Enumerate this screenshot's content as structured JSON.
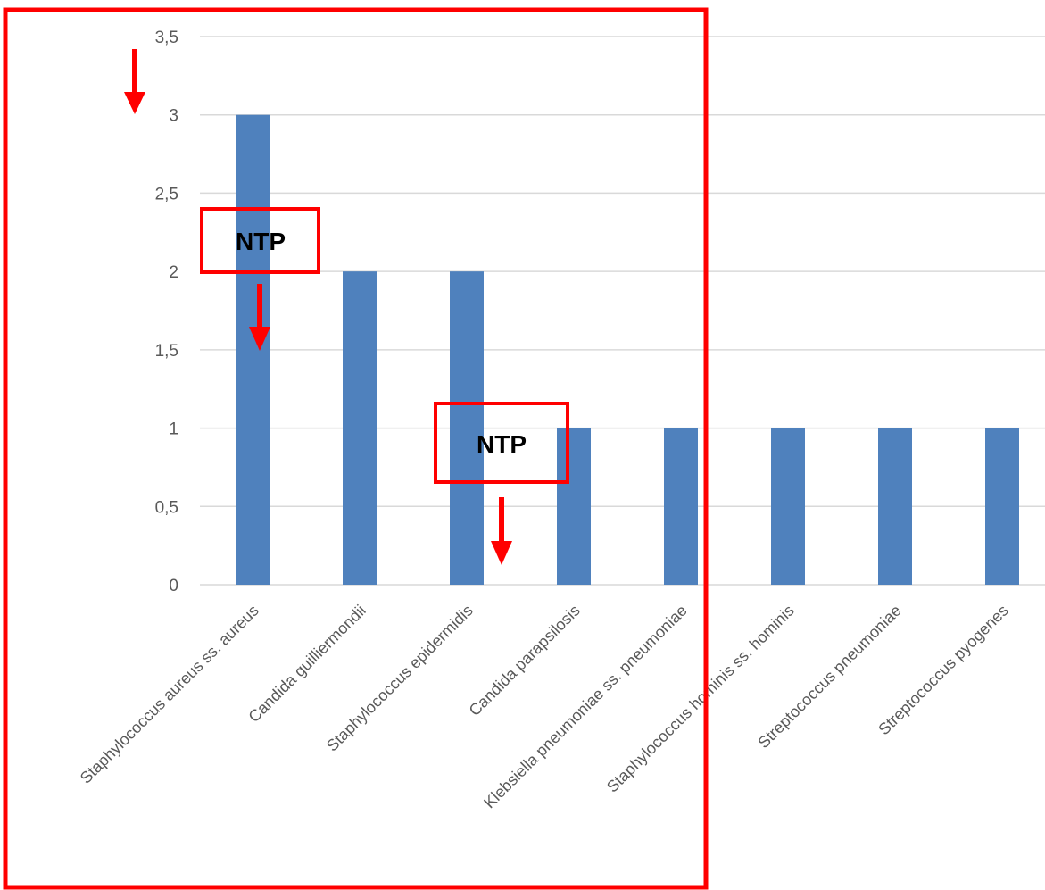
{
  "chart_data": {
    "type": "bar",
    "categories": [
      "Staphylococcus aureus ss. aureus",
      "Candida guilliermondii",
      "Staphylococcus epidermidis",
      "Candida parapsilosis",
      "Klebsiella pneumoniae ss. pneumoniae",
      "Staphylococcus hominis ss. hominis",
      "Streptococcus pneumoniae",
      "Streptococcus pyogenes"
    ],
    "values": [
      3,
      2,
      2,
      1,
      1,
      1,
      1,
      1
    ],
    "y_ticks": [
      "0",
      "0,5",
      "1",
      "1,5",
      "2",
      "2,5",
      "3",
      "3,5"
    ],
    "ylim": [
      0,
      3.5
    ],
    "grid": true,
    "legend": "none",
    "bar_color": "#4f81bd",
    "annotations": [
      {
        "label": "NTP"
      },
      {
        "label": "NTP"
      }
    ],
    "annotation_color": "#ff0000"
  }
}
